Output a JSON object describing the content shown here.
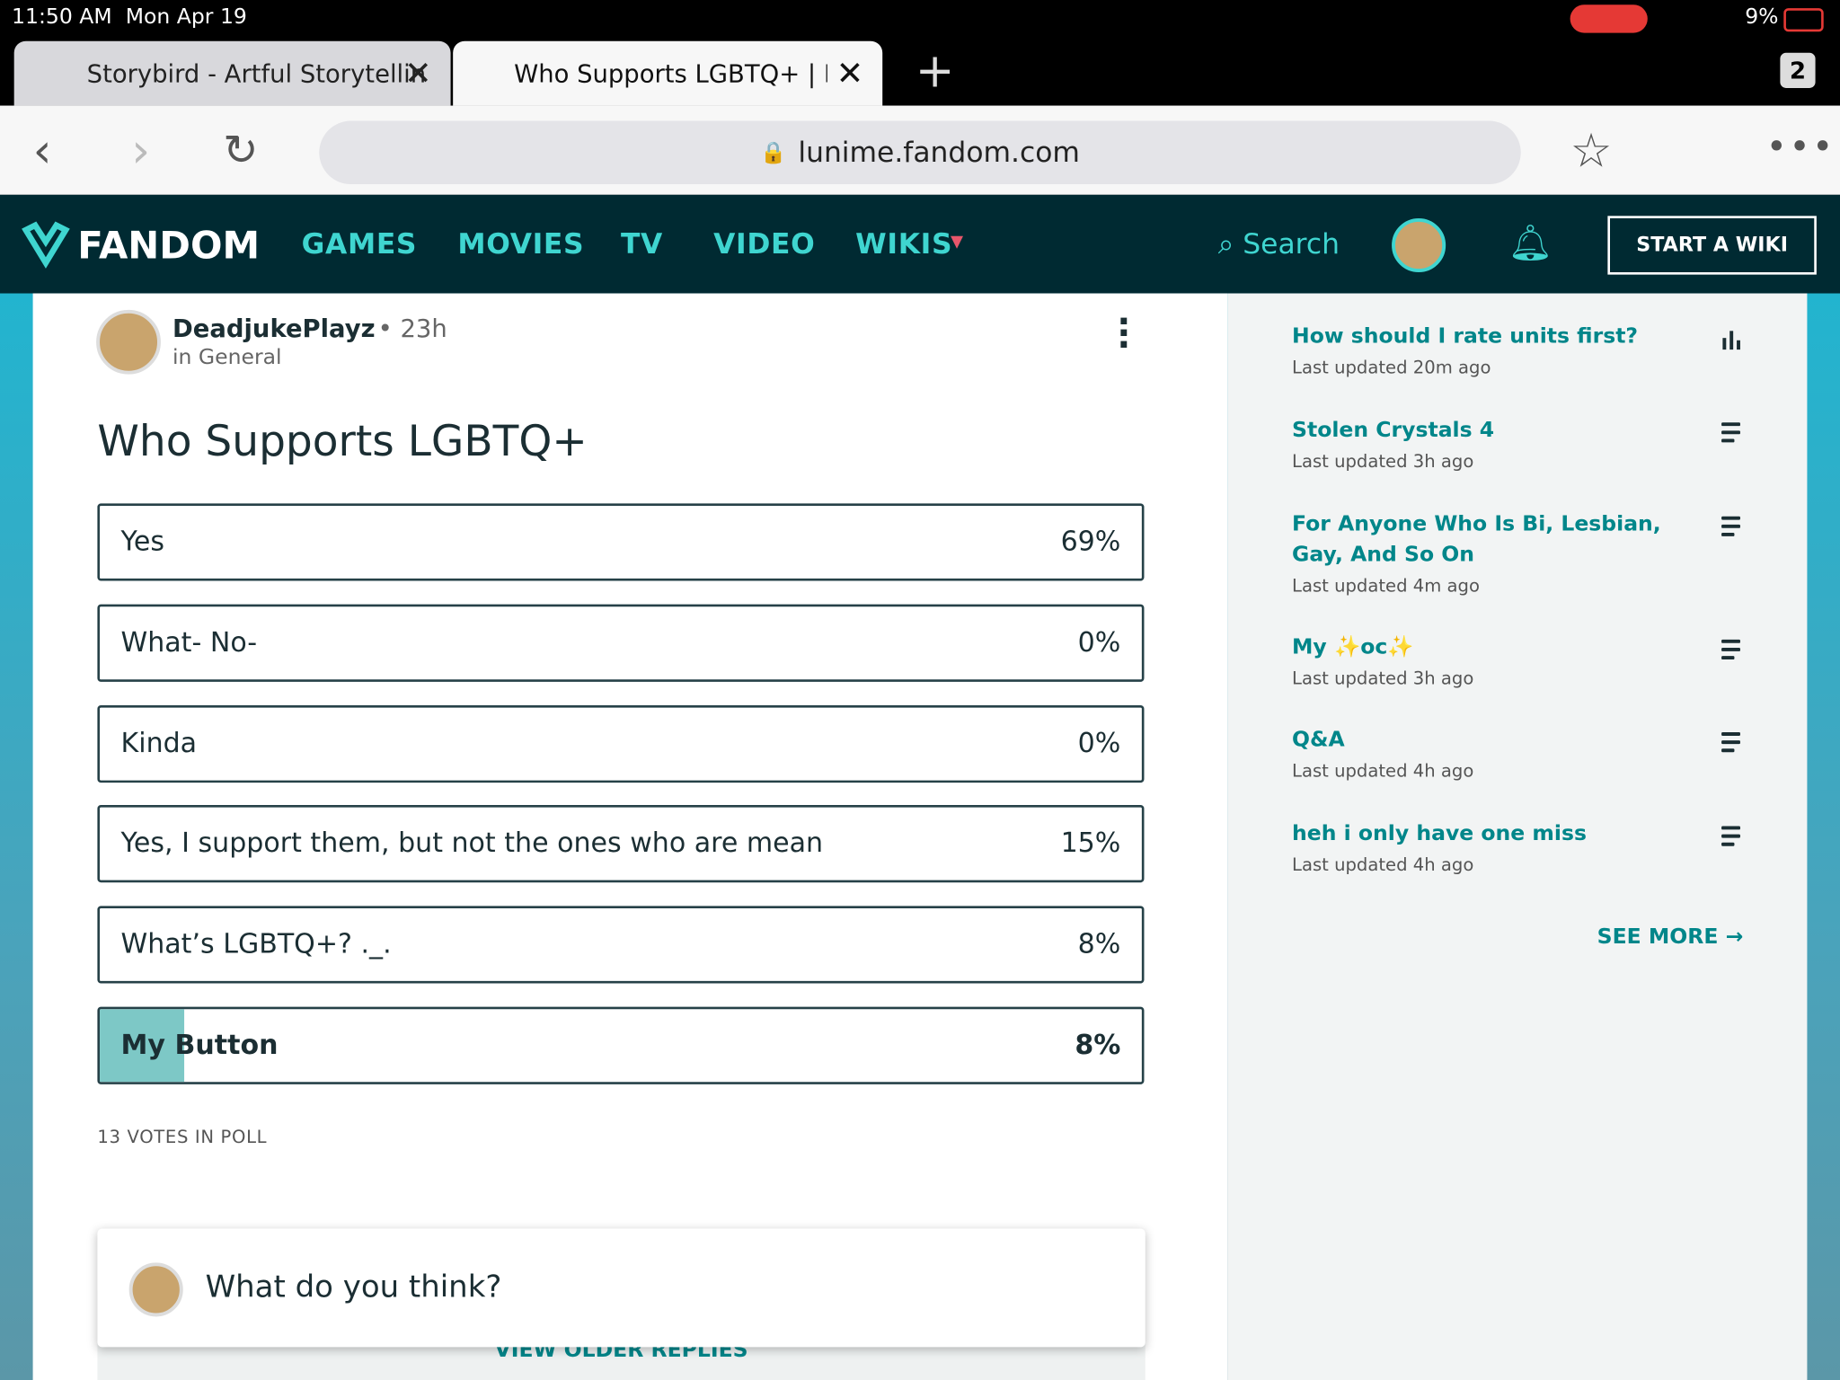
{
  "status_bar": {
    "time": "11:50 AM",
    "date": "Mon Apr 19",
    "battery": "9%"
  },
  "tabs": [
    {
      "title": "Storybird - Artful Storytellin"
    },
    {
      "title": "Who Supports LGBTQ+ | Fa"
    }
  ],
  "tab_count": "2",
  "address_bar": {
    "url": "lunime.fandom.com"
  },
  "nav": {
    "logo": "FANDOM",
    "links": [
      "GAMES",
      "MOVIES",
      "TV",
      "VIDEO",
      "WIKIS"
    ],
    "search": "Search",
    "cta": "START A WIKI"
  },
  "post": {
    "author": "DeadjukePlayz",
    "time": "23h",
    "category": "in General",
    "title": "Who Supports LGBTQ+",
    "poll": {
      "options": [
        {
          "label": "Yes",
          "percent": "69%"
        },
        {
          "label": "What- No-",
          "percent": "0%"
        },
        {
          "label": "Kinda",
          "percent": "0%"
        },
        {
          "label": "Yes, I support them, but not the ones who are mean",
          "percent": "15%"
        },
        {
          "label": "What’s LGBTQ+? ._.",
          "percent": "8%"
        },
        {
          "label": "My Button",
          "percent": "8%"
        }
      ],
      "votes": "13 VOTES IN POLL"
    },
    "reply_prompt": "What do you think?",
    "older_replies": "VIEW OLDER REPLIES"
  },
  "sidebar": {
    "items": [
      {
        "title": "How should I rate units first?",
        "updated": "Last updated 20m ago"
      },
      {
        "title": "Stolen Crystals 4",
        "updated": "Last updated 3h ago"
      },
      {
        "title": "For Anyone Who Is Bi, Lesbian, Gay, And So On",
        "updated": "Last updated 4m ago"
      },
      {
        "title": "My ✨oc✨",
        "updated": "Last updated 3h ago"
      },
      {
        "title": "Q&A",
        "updated": "Last updated 4h ago"
      },
      {
        "title": "heh i only have one miss",
        "updated": "Last updated 4h ago"
      }
    ],
    "see_more": "SEE MORE"
  }
}
